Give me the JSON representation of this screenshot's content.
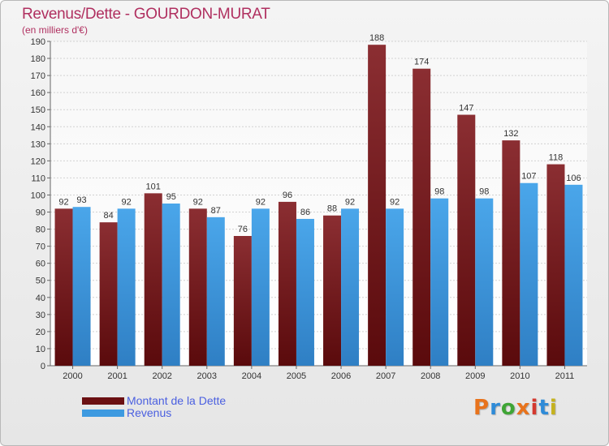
{
  "header": {
    "title": "Revenus/Dette - GOURDON-MURAT",
    "subtitle": "(en milliers d'€)"
  },
  "colors": {
    "title": "#b03060",
    "dette": "#7a1c20",
    "revenus": "#3d9ae0",
    "legend_text": "#4a5fe0"
  },
  "legend": {
    "items": [
      {
        "label": "Montant de la Dette",
        "color": "#6b1012"
      },
      {
        "label": "Revenus",
        "color": "#3d9ae0"
      }
    ]
  },
  "logo": {
    "letters": [
      "P",
      "r",
      "o",
      "x",
      "i",
      "t",
      "i"
    ],
    "colors": [
      "#e8731c",
      "#2e8bd8",
      "#3fa535",
      "#e8731c",
      "#d4392f",
      "#2e8bd8",
      "#c5b21e"
    ]
  },
  "chart_data": {
    "type": "bar",
    "title": "Revenus/Dette - GOURDON-MURAT",
    "subtitle": "(en milliers d'€)",
    "categories": [
      "2000",
      "2001",
      "2002",
      "2003",
      "2004",
      "2005",
      "2006",
      "2007",
      "2008",
      "2009",
      "2010",
      "2011"
    ],
    "series": [
      {
        "name": "Montant de la Dette",
        "values": [
          92,
          84,
          101,
          92,
          76,
          96,
          88,
          188,
          174,
          147,
          132,
          118
        ]
      },
      {
        "name": "Revenus",
        "values": [
          93,
          92,
          95,
          87,
          92,
          86,
          92,
          92,
          98,
          98,
          107,
          106
        ]
      }
    ],
    "ylim": [
      0,
      190
    ],
    "yticks": [
      0,
      10,
      20,
      30,
      40,
      50,
      60,
      70,
      80,
      90,
      100,
      110,
      120,
      130,
      140,
      150,
      160,
      170,
      180,
      190
    ],
    "grid": true,
    "legend_position": "bottom-left",
    "data_labels": true
  }
}
